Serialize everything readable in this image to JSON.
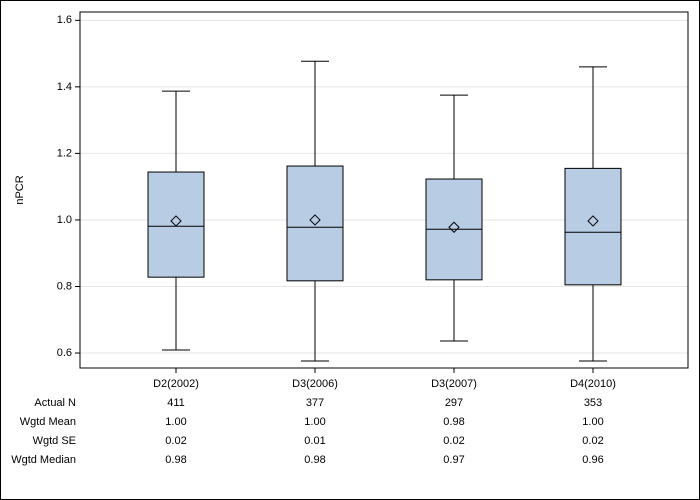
{
  "chart_data": {
    "type": "box",
    "y_label": "nPCR",
    "categories": [
      "D2(2002)",
      "D3(2006)",
      "D3(2007)",
      "D4(2010)"
    ],
    "boxes": [
      {
        "min": 0.609,
        "q1": 0.828,
        "median": 0.981,
        "q3": 1.144,
        "max": 1.387,
        "mean": 0.997
      },
      {
        "min": 0.576,
        "q1": 0.817,
        "median": 0.978,
        "q3": 1.162,
        "max": 1.477,
        "mean": 1.0
      },
      {
        "min": 0.636,
        "q1": 0.82,
        "median": 0.972,
        "q3": 1.123,
        "max": 1.375,
        "mean": 0.978
      },
      {
        "min": 0.576,
        "q1": 0.805,
        "median": 0.963,
        "q3": 1.155,
        "max": 1.46,
        "mean": 0.997
      }
    ],
    "color": "#b8cce4",
    "ylim": [
      0.555,
      1.625
    ],
    "yticks": [
      0.6,
      0.8,
      {
        "value": 1.0,
        "label": "1.0"
      },
      1.2,
      1.4,
      1.6
    ],
    "grid": true,
    "table": {
      "row_labels": [
        "Actual N",
        "Wgtd Mean",
        "Wgtd SE",
        "Wgtd Median"
      ],
      "rows": [
        [
          "411",
          "377",
          "297",
          "353"
        ],
        [
          "1.00",
          "1.00",
          "0.98",
          "1.00"
        ],
        [
          "0.02",
          "0.01",
          "0.02",
          "0.02"
        ],
        [
          "0.98",
          "0.98",
          "0.97",
          "0.96"
        ]
      ]
    }
  }
}
